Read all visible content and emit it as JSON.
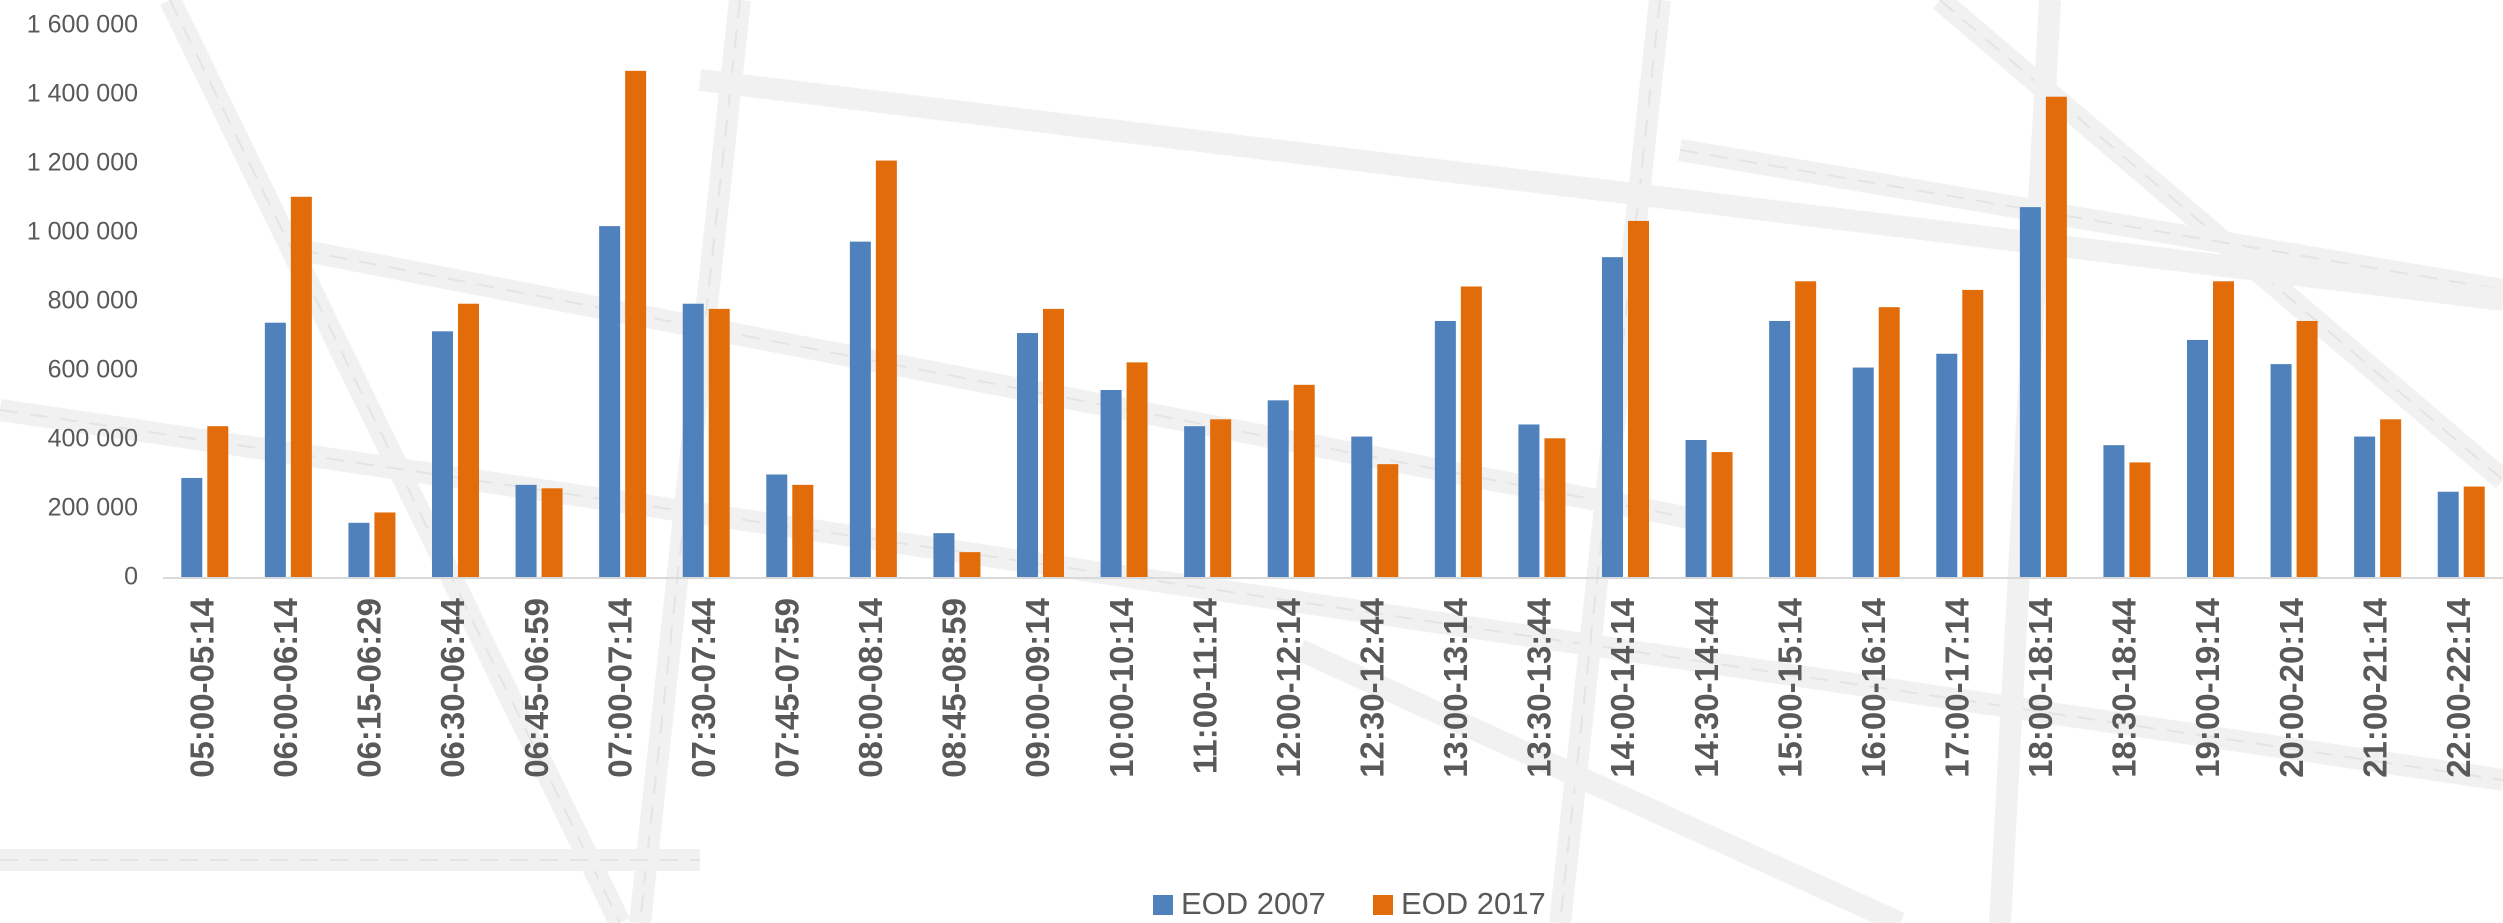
{
  "chart_data": {
    "type": "bar",
    "categories": [
      "05:00-05:14",
      "06:00-06:14",
      "06:15-06:29",
      "06:30-06:44",
      "06:45-06:59",
      "07:00-07:14",
      "07:30-07:44",
      "07:45-07:59",
      "08:00-08:14",
      "08:45-08:59",
      "09:00-09:14",
      "10:00-10:14",
      "11:00-11:14",
      "12:00-12:14",
      "12:30-12:44",
      "13:00-13:14",
      "13:30-13:44",
      "14:00-14:14",
      "14:30-14:44",
      "15:00-15:14",
      "16:00-16:14",
      "17:00-17:14",
      "18:00-18:14",
      "18:30-18:44",
      "19:00-19:14",
      "20:00-20:14",
      "21:00-21:14",
      "22:00-22:14"
    ],
    "series": [
      {
        "name": "EOD 2007",
        "color": "#4f81bd",
        "values": [
          290000,
          740000,
          160000,
          715000,
          270000,
          1020000,
          795000,
          300000,
          975000,
          130000,
          710000,
          545000,
          440000,
          515000,
          410000,
          745000,
          445000,
          930000,
          400000,
          745000,
          610000,
          650000,
          1075000,
          385000,
          690000,
          620000,
          410000,
          250000
        ]
      },
      {
        "name": "EOD 2017",
        "color": "#e36c0a",
        "values": [
          440000,
          1105000,
          190000,
          795000,
          260000,
          1470000,
          780000,
          270000,
          1210000,
          75000,
          780000,
          625000,
          460000,
          560000,
          330000,
          845000,
          405000,
          1035000,
          365000,
          860000,
          785000,
          835000,
          1395000,
          335000,
          860000,
          745000,
          460000,
          265000
        ]
      }
    ],
    "ylim": [
      0,
      1600000
    ],
    "yticks": [
      0,
      {
        "value": 200000,
        "label": "200 000"
      },
      {
        "value": 400000,
        "label": "400 000"
      },
      {
        "value": 600000,
        "label": "600 000"
      },
      {
        "value": 800000,
        "label": "800 000"
      },
      {
        "value": 1000000,
        "label": "1 000 000"
      },
      {
        "value": 1200000,
        "label": "1 200 000"
      },
      {
        "value": 1400000,
        "label": "1 400 000"
      },
      {
        "value": 1600000,
        "label": "1 600 000"
      }
    ],
    "legend": "bottom"
  }
}
